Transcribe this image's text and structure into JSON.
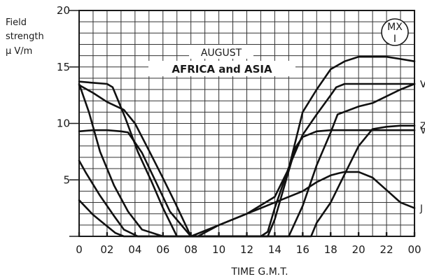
{
  "chart_data": {
    "type": "line",
    "title": "AUGUST",
    "subtitle": "AFRICA and ASIA",
    "ylabel_lines": [
      "Field",
      "strength",
      "μ V/m"
    ],
    "xlabel": "TIME  G.M.T.",
    "badge": [
      "MX",
      "I"
    ],
    "xlim": [
      0,
      24
    ],
    "ylim": [
      0,
      20
    ],
    "x_ticks": [
      "0",
      "02",
      "04",
      "06",
      "08",
      "10",
      "12",
      "14",
      "16",
      "18",
      "20",
      "22",
      "00"
    ],
    "y_ticks": [
      "5",
      "10",
      "15",
      "20"
    ],
    "grid": true,
    "series": [
      {
        "label": "V",
        "x": [
          0,
          1,
          2,
          2.4,
          3.3,
          4.2,
          5.2,
          6,
          7,
          8,
          9,
          10,
          11,
          12,
          13,
          14,
          15,
          16,
          17,
          18,
          18.5,
          20,
          21,
          22,
          23,
          24
        ],
        "y": [
          13.7,
          13.6,
          13.5,
          13.2,
          10.5,
          7.5,
          4.8,
          2.5,
          0,
          0,
          0,
          0,
          0,
          0,
          0,
          0,
          0,
          2.7,
          6.3,
          9.2,
          10.8,
          11.5,
          11.8,
          12.4,
          13.0,
          13.5
        ]
      },
      {
        "label": "V",
        "x": [
          0,
          1,
          2,
          3.2,
          4,
          5,
          5.9,
          6.9,
          8,
          9,
          10,
          11,
          12,
          13,
          13.5,
          14,
          15,
          16,
          17,
          18,
          18.4,
          19,
          20,
          21,
          22,
          23,
          23.6,
          24
        ],
        "y": [
          13.4,
          12.7,
          11.9,
          11.2,
          10,
          7.6,
          5.4,
          2.9,
          0,
          0,
          0,
          0,
          0,
          0,
          0.4,
          2.5,
          6.1,
          9.0,
          10.8,
          12.5,
          13.2,
          13.5,
          13.5,
          13.5,
          13.5,
          13.5,
          13.5,
          13.5
        ]
      },
      {
        "label": "Z",
        "x": [
          0,
          1,
          2,
          3,
          3.5,
          4.5,
          5.5,
          6.5,
          8,
          9,
          10,
          11,
          12,
          13,
          14,
          15,
          16,
          16.6,
          17,
          18,
          19,
          20,
          21,
          22,
          23,
          24
        ],
        "y": [
          9.3,
          9.4,
          9.4,
          9.3,
          9.2,
          7.4,
          4.8,
          2.2,
          0,
          0,
          0,
          0,
          0,
          0,
          0,
          0,
          0,
          0,
          1.2,
          3.0,
          5.5,
          8.0,
          9.5,
          9.7,
          9.8,
          9.8
        ]
      },
      {
        "label": "V",
        "x": [
          0,
          0.5,
          1.5,
          2.5,
          3.2,
          4.2,
          5.2,
          6.2,
          6.6,
          8,
          9,
          10,
          11,
          12,
          13,
          13.5,
          14,
          15,
          15.5,
          16,
          17,
          18,
          19,
          20,
          21,
          22,
          23,
          24
        ],
        "y": [
          6.7,
          5.6,
          3.6,
          1.8,
          0.6,
          0,
          0,
          0,
          0,
          0,
          0,
          0,
          0,
          0,
          0,
          0,
          1.5,
          5.8,
          7.9,
          8.8,
          9.3,
          9.4,
          9.4,
          9.4,
          9.4,
          9.4,
          9.4,
          9.4
        ]
      },
      {
        "label": "J",
        "x": [
          0,
          1,
          2,
          2.6,
          3.2,
          4,
          5,
          6,
          7,
          8,
          10,
          12,
          14,
          16,
          17,
          18,
          18.6,
          19,
          20,
          21,
          22,
          23,
          24
        ],
        "y": [
          3.2,
          1.9,
          0.9,
          0.3,
          0,
          0,
          0,
          0,
          0,
          0,
          1.0,
          2.0,
          3.0,
          4.0,
          4.8,
          5.4,
          5.6,
          5.7,
          5.7,
          5.2,
          4.1,
          3.0,
          2.5
        ]
      },
      {
        "label": "",
        "x": [
          0,
          0.7,
          1.5,
          2.5,
          3.5,
          4.5,
          6,
          7,
          8,
          8.5,
          10,
          12,
          14,
          15,
          16,
          17,
          18,
          19,
          20,
          21,
          22,
          23,
          24
        ],
        "y": [
          13.5,
          11.0,
          7.5,
          4.5,
          2.2,
          0.6,
          0,
          0,
          0,
          0,
          1.0,
          2.0,
          3.5,
          6.0,
          11.0,
          13.0,
          14.8,
          15.5,
          15.9,
          15.9,
          15.9,
          15.7,
          15.5
        ]
      }
    ]
  }
}
